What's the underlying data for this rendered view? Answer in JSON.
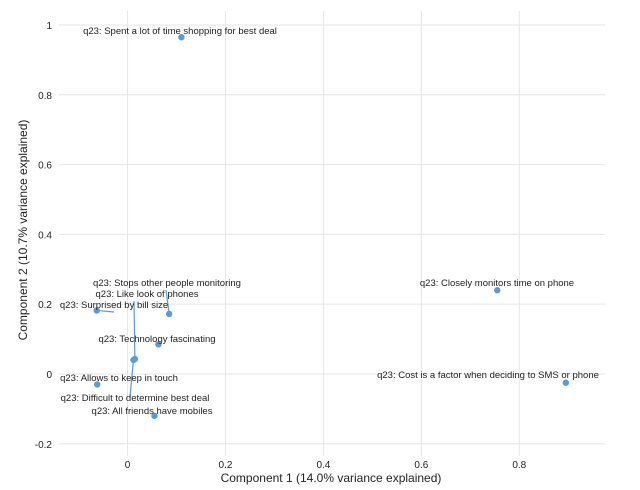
{
  "chart_data": {
    "type": "scatter",
    "xlabel": "Component 1 (14.0% variance explained)",
    "ylabel": "Component 2 (10.7% variance explained)",
    "xlim": [
      -0.14,
      0.975
    ],
    "ylim": [
      -0.235,
      1.04
    ],
    "x_ticks": [
      0,
      0.2,
      0.4,
      0.6,
      0.8
    ],
    "x_tick_labels": [
      "0",
      "0.2",
      "0.4",
      "0.6",
      "0.8"
    ],
    "y_ticks": [
      -0.2,
      0,
      0.2,
      0.4,
      0.6,
      0.8,
      1
    ],
    "y_tick_labels": [
      "-0.2",
      "0",
      "0.2",
      "0.4",
      "0.6",
      "0.8",
      "1"
    ],
    "grid": true,
    "point_color": "#5b9bd5",
    "points": [
      {
        "label": "q23: Spent a lot of time shopping for best deal",
        "x": 0.11,
        "y": 0.965
      },
      {
        "label": "q23: Closely monitors time on phone",
        "x": 0.755,
        "y": 0.24
      },
      {
        "label": "q23: Cost is a factor when deciding to SMS or phone",
        "x": 0.895,
        "y": -0.025
      },
      {
        "label": "q23: Stops other people monitoring",
        "x": 0.085,
        "y": 0.172
      },
      {
        "label": "q23: Like look of phones",
        "x": 0.015,
        "y": 0.043
      },
      {
        "label": "q23: Surprised by bill size",
        "x": -0.063,
        "y": 0.182
      },
      {
        "label": "q23: Technology fascinating",
        "x": 0.063,
        "y": 0.085
      },
      {
        "label": "q23: Allows to keep in touch",
        "x": -0.062,
        "y": -0.03
      },
      {
        "label": "q23: Difficult to determine best deal",
        "x": 0.012,
        "y": 0.04
      },
      {
        "label": "q23: All friends have mobiles",
        "x": 0.055,
        "y": -0.12
      }
    ]
  }
}
